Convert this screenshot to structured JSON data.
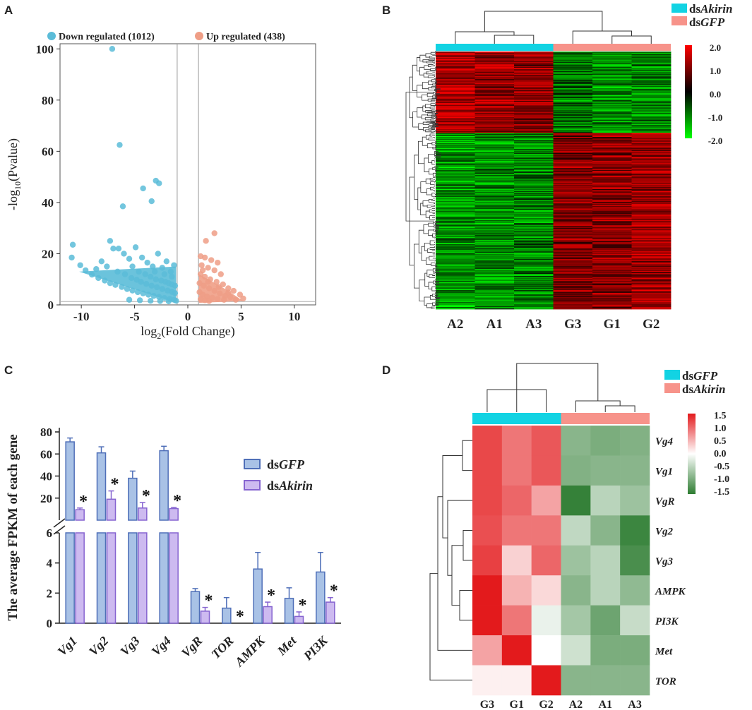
{
  "panels": {
    "a": {
      "letter": "A"
    },
    "b": {
      "letter": "B"
    },
    "c": {
      "letter": "C"
    },
    "d": {
      "letter": "D"
    }
  },
  "colors": {
    "down": "#5bbcd8",
    "up": "#ef9e86",
    "cyan_bar": "#12d3e3",
    "salmon_bar": "#f7938a",
    "dsgfp_fill": "#a9c2e6",
    "dsgfp_stroke": "#4f6fb8",
    "dsakirin_fill": "#cdbaf0",
    "dsakirin_stroke": "#8664d0"
  },
  "chart_data": [
    {
      "id": "A",
      "type": "scatter",
      "title": "",
      "xlabel": "log2(Fold Change)",
      "ylabel": "-log10(Pvalue)",
      "xlim": [
        -12,
        12
      ],
      "ylim": [
        0,
        102
      ],
      "xticks": [
        -10,
        -5,
        0,
        5,
        10
      ],
      "xtick_labels": [
        "-10",
        "-5",
        "0",
        "5",
        "10"
      ],
      "yticks": [
        0,
        20,
        40,
        60,
        80,
        100
      ],
      "ytick_labels": [
        "0",
        "20",
        "40",
        "60",
        "80",
        "100"
      ],
      "threshold_lines_x": [
        -1,
        1
      ],
      "threshold_line_y": 1.3,
      "legend": [
        {
          "label": "Down regulated (1012)",
          "color": "#5bbcd8"
        },
        {
          "label": "Up regulated (438)",
          "color": "#ef9e86"
        }
      ],
      "series": [
        {
          "name": "Down regulated",
          "points": [
            [
              -7.1,
              100
            ],
            [
              -6.4,
              62.5
            ],
            [
              -4.2,
              45.5
            ],
            [
              -3.0,
              48.5
            ],
            [
              -2.7,
              47.5
            ],
            [
              -3.4,
              40.5
            ],
            [
              -6.1,
              38.5
            ],
            [
              -10.8,
              23.5
            ],
            [
              -10.9,
              18.5
            ],
            [
              -10.1,
              15.5
            ],
            [
              -9.6,
              13.5
            ],
            [
              -9.0,
              11.8
            ],
            [
              -8.4,
              10.5
            ],
            [
              -7.8,
              9.5
            ],
            [
              -7.3,
              8.5
            ],
            [
              -6.8,
              7.8
            ],
            [
              -6.2,
              7.0
            ],
            [
              -5.7,
              6.2
            ],
            [
              -5.2,
              5.6
            ],
            [
              -4.7,
              5.0
            ],
            [
              -4.2,
              4.5
            ],
            [
              -3.7,
              4.0
            ],
            [
              -3.2,
              3.5
            ],
            [
              -2.7,
              3.1
            ],
            [
              -2.2,
              2.7
            ],
            [
              -1.7,
              2.3
            ],
            [
              -1.3,
              2.0
            ],
            [
              -7.3,
              25.0
            ],
            [
              -7.0,
              22.0
            ],
            [
              -6.5,
              22.0
            ],
            [
              -6.0,
              20.0
            ],
            [
              -5.5,
              18.0
            ],
            [
              -4.9,
              22.5
            ],
            [
              -4.3,
              18.5
            ],
            [
              -3.8,
              16.5
            ],
            [
              -3.3,
              15.0
            ],
            [
              -2.8,
              20.0
            ],
            [
              -2.4,
              14.5
            ],
            [
              -2.0,
              17.0
            ],
            [
              -1.6,
              13.0
            ],
            [
              -1.3,
              15.5
            ],
            [
              -5.2,
              15.0
            ],
            [
              -4.6,
              13.0
            ],
            [
              -4.0,
              12.0
            ],
            [
              -3.5,
              11.0
            ],
            [
              -3.0,
              10.0
            ],
            [
              -2.5,
              9.5
            ],
            [
              -2.1,
              9.0
            ],
            [
              -1.8,
              8.5
            ],
            [
              -1.5,
              8.0
            ],
            [
              -1.2,
              7.5
            ],
            [
              -6.6,
              13.0
            ],
            [
              -5.9,
              12.0
            ],
            [
              -5.3,
              10.5
            ],
            [
              -4.8,
              9.8
            ],
            [
              -4.4,
              9.0
            ],
            [
              -3.9,
              8.2
            ],
            [
              -3.4,
              7.5
            ],
            [
              -2.9,
              6.9
            ],
            [
              -2.4,
              6.2
            ],
            [
              -1.9,
              5.6
            ],
            [
              -1.5,
              5.1
            ],
            [
              -1.2,
              4.6
            ],
            [
              -8.1,
              17.0
            ],
            [
              -7.6,
              15.0
            ],
            [
              -8.6,
              14.0
            ],
            [
              -5.5,
              2.0
            ],
            [
              -4.5,
              1.8
            ],
            [
              -3.5,
              1.6
            ],
            [
              -2.6,
              1.5
            ],
            [
              -1.8,
              1.4
            ],
            [
              -1.1,
              1.6
            ],
            [
              -1.5,
              11.0
            ],
            [
              -2.2,
              12.0
            ],
            [
              -3.1,
              13.0
            ]
          ]
        },
        {
          "name": "Up regulated",
          "points": [
            [
              2.5,
              28.0
            ],
            [
              1.7,
              25.0
            ],
            [
              1.2,
              19.0
            ],
            [
              1.6,
              18.5
            ],
            [
              2.2,
              17.5
            ],
            [
              2.8,
              16.5
            ],
            [
              1.3,
              15.5
            ],
            [
              1.9,
              14.5
            ],
            [
              2.5,
              13.5
            ],
            [
              3.1,
              12.0
            ],
            [
              1.2,
              12.0
            ],
            [
              1.6,
              11.0
            ],
            [
              2.1,
              10.0
            ],
            [
              2.7,
              9.0
            ],
            [
              3.3,
              8.0
            ],
            [
              3.8,
              6.5
            ],
            [
              4.3,
              5.5
            ],
            [
              4.9,
              4.0
            ],
            [
              5.2,
              2.5
            ],
            [
              1.1,
              8.5
            ],
            [
              1.5,
              7.5
            ],
            [
              2.0,
              6.5
            ],
            [
              2.5,
              5.5
            ],
            [
              3.0,
              4.5
            ],
            [
              3.5,
              3.5
            ],
            [
              4.0,
              3.0
            ],
            [
              1.1,
              5.0
            ],
            [
              1.4,
              4.0
            ],
            [
              1.8,
              3.3
            ],
            [
              2.3,
              2.8
            ],
            [
              2.8,
              2.3
            ],
            [
              3.4,
              2.0
            ],
            [
              4.5,
              2.0
            ],
            [
              1.2,
              2.2
            ],
            [
              1.6,
              1.8
            ],
            [
              2.0,
              1.5
            ],
            [
              3.8,
              4.8
            ],
            [
              2.9,
              7.0
            ],
            [
              1.9,
              9.0
            ],
            [
              1.4,
              13.5
            ]
          ]
        }
      ]
    },
    {
      "id": "B",
      "type": "heatmap",
      "title": "",
      "legend": [
        {
          "label_prefix": "ds",
          "label_italic": "Akirin",
          "color": "#12d3e3"
        },
        {
          "label_prefix": "ds",
          "label_italic": "GFP",
          "color": "#f7938a"
        }
      ],
      "columns": [
        "A2",
        "A1",
        "A3",
        "G3",
        "G1",
        "G2"
      ],
      "column_groups": [
        "dsAkirin",
        "dsAkirin",
        "dsAkirin",
        "dsGFP",
        "dsGFP",
        "dsGFP"
      ],
      "colorbar": {
        "min": -2.0,
        "max": 2.0,
        "ticks": [
          "2.0",
          "1.0",
          "0.0",
          "-1.0",
          "-2.0"
        ],
        "low": "#00ff00",
        "mid": "#000000",
        "high": "#ff0000"
      },
      "row_blocks": [
        {
          "rows": 120,
          "values": [
            1.3,
            1.2,
            1.1,
            -0.9,
            -1.2,
            -1.0
          ]
        },
        {
          "rows": 260,
          "values": [
            -1.2,
            -1.1,
            -1.0,
            1.0,
            1.1,
            1.2
          ]
        }
      ]
    },
    {
      "id": "C",
      "type": "bar",
      "title": "",
      "xlabel": "",
      "ylabel": "The average FPKM of each gene",
      "categories": [
        "Vg1",
        "Vg2",
        "Vg3",
        "Vg4",
        "VgR",
        "TOR",
        "AMPK",
        "Met",
        "PI3K"
      ],
      "series": [
        {
          "name": "dsGFP",
          "label_prefix": "ds",
          "label_italic": "GFP",
          "values": [
            71,
            61,
            38,
            63,
            2.1,
            1.0,
            3.6,
            1.65,
            3.4
          ],
          "errors": [
            3.5,
            5.5,
            6.5,
            4.0,
            0.2,
            0.7,
            1.1,
            0.7,
            1.3
          ]
        },
        {
          "name": "dsAkirin",
          "label_prefix": "ds",
          "label_italic": "Akirin",
          "values": [
            9.5,
            19,
            11,
            10.5,
            0.8,
            0.0,
            1.1,
            0.45,
            1.4
          ],
          "errors": [
            1.5,
            7.5,
            5.0,
            1.0,
            0.25,
            0.0,
            0.3,
            0.3,
            0.3
          ]
        }
      ],
      "significance": [
        "*",
        "*",
        "*",
        "*",
        "*",
        "*",
        "*",
        "*",
        "*"
      ],
      "axis_break": {
        "lower_range": [
          0,
          6
        ],
        "upper_range": [
          0,
          80
        ]
      },
      "yticks_lower": [
        0,
        2,
        4,
        6
      ],
      "ytick_labels_lower": [
        "0",
        "2",
        "4",
        "6"
      ],
      "yticks_upper": [
        20,
        40,
        60,
        80
      ],
      "ytick_labels_upper": [
        "20",
        "40",
        "60",
        "80"
      ]
    },
    {
      "id": "D",
      "type": "heatmap",
      "title": "",
      "legend": [
        {
          "label_prefix": "ds",
          "label_italic": "GFP",
          "color": "#12d3e3"
        },
        {
          "label_prefix": "ds",
          "label_italic": "Akirin",
          "color": "#f7938a"
        }
      ],
      "columns": [
        "G3",
        "G1",
        "G2",
        "A2",
        "A1",
        "A3"
      ],
      "rows": [
        "Vg4",
        "Vg1",
        "VgR",
        "Vg2",
        "Vg3",
        "AMPK",
        "PI3K",
        "Met",
        "TOR"
      ],
      "values": [
        [
          1.2,
          0.9,
          1.1,
          -0.85,
          -0.95,
          -0.9
        ],
        [
          1.2,
          0.9,
          1.1,
          -0.9,
          -0.85,
          -0.85
        ],
        [
          1.2,
          1.0,
          0.6,
          -1.45,
          -0.5,
          -0.7
        ],
        [
          1.15,
          0.9,
          0.9,
          -0.45,
          -0.85,
          -1.4
        ],
        [
          1.25,
          0.3,
          1.0,
          -0.7,
          -0.5,
          -1.3
        ],
        [
          1.5,
          0.5,
          0.25,
          -0.85,
          -0.5,
          -0.8
        ],
        [
          1.5,
          0.9,
          -0.15,
          -0.65,
          -1.05,
          -0.4
        ],
        [
          0.6,
          1.5,
          0.0,
          -0.35,
          -0.95,
          -0.95
        ],
        [
          0.1,
          0.1,
          1.55,
          -0.85,
          -0.85,
          -0.85
        ]
      ],
      "colorbar": {
        "min": -1.5,
        "max": 1.5,
        "ticks": [
          "1.5",
          "1.0",
          "0.5",
          "0.0",
          "-0.5",
          "-1.0",
          "-1.5"
        ],
        "low": "#2e7d32",
        "mid": "#ffffff",
        "high": "#e31a1c"
      }
    }
  ]
}
